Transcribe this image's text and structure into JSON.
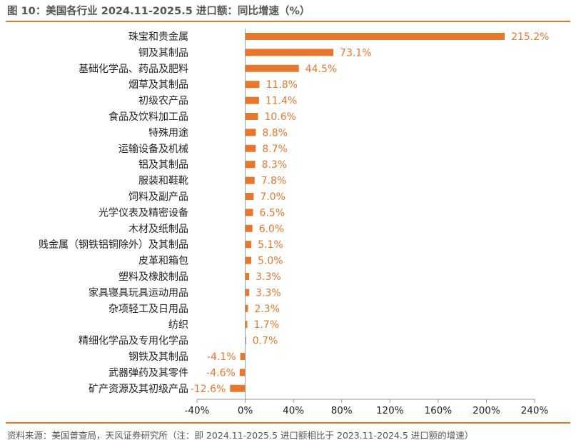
{
  "title": "图 10：美国各行业 2024.11-2025.5 进口额：同比增速（%）",
  "source": "资料来源：美国普查局，天风证券研究所（注：即 2024.11-2025.5 进口额相比于 2023.11-2024.5 进口额的增速）",
  "colors": {
    "accent": "#E8772E",
    "axis": "#999999",
    "text": "#222222"
  },
  "chart_data": {
    "type": "bar",
    "orientation": "horizontal",
    "title": "美国各行业 2024.11-2025.5 进口额：同比增速（%）",
    "xlabel": "",
    "ylabel": "",
    "xlim": [
      -40,
      240
    ],
    "xticks": [
      -40,
      0,
      40,
      80,
      120,
      160,
      200,
      240
    ],
    "xtick_labels": [
      "-40%",
      "0%",
      "40%",
      "80%",
      "120%",
      "160%",
      "200%",
      "240%"
    ],
    "grid": false,
    "categories": [
      "珠宝和贵金属",
      "铜及其制品",
      "基础化学品、药品及肥料",
      "烟草及其制品",
      "初级农产品",
      "食品及饮料加工品",
      "特殊用途",
      "运输设备及机械",
      "铝及其制品",
      "服装和鞋靴",
      "饲料及副产品",
      "光学仪表及精密设备",
      "木材及纸制品",
      "贱金属（钢铁铝铜除外）及其制品",
      "皮革和箱包",
      "塑料及橡胶制品",
      "家具寝具玩具运动用品",
      "杂项轻工及日用品",
      "纺织",
      "精细化学品及专用化学品",
      "钢铁及其制品",
      "武器弹药及其零件",
      "矿产资源及其初级产品"
    ],
    "values": [
      215.2,
      73.1,
      44.5,
      11.8,
      11.4,
      10.6,
      8.8,
      8.7,
      8.3,
      7.8,
      7.0,
      6.5,
      6.0,
      5.1,
      5.0,
      3.3,
      3.3,
      2.3,
      1.7,
      0.7,
      -4.1,
      -4.6,
      -12.6
    ],
    "value_labels": [
      "215.2%",
      "73.1%",
      "44.5%",
      "11.8%",
      "11.4%",
      "10.6%",
      "8.8%",
      "8.7%",
      "8.3%",
      "7.8%",
      "7.0%",
      "6.5%",
      "6.0%",
      "5.1%",
      "5.0%",
      "3.3%",
      "3.3%",
      "2.3%",
      "1.7%",
      "0.7%",
      "-4.1%",
      "-4.6%",
      "-12.6%"
    ]
  }
}
